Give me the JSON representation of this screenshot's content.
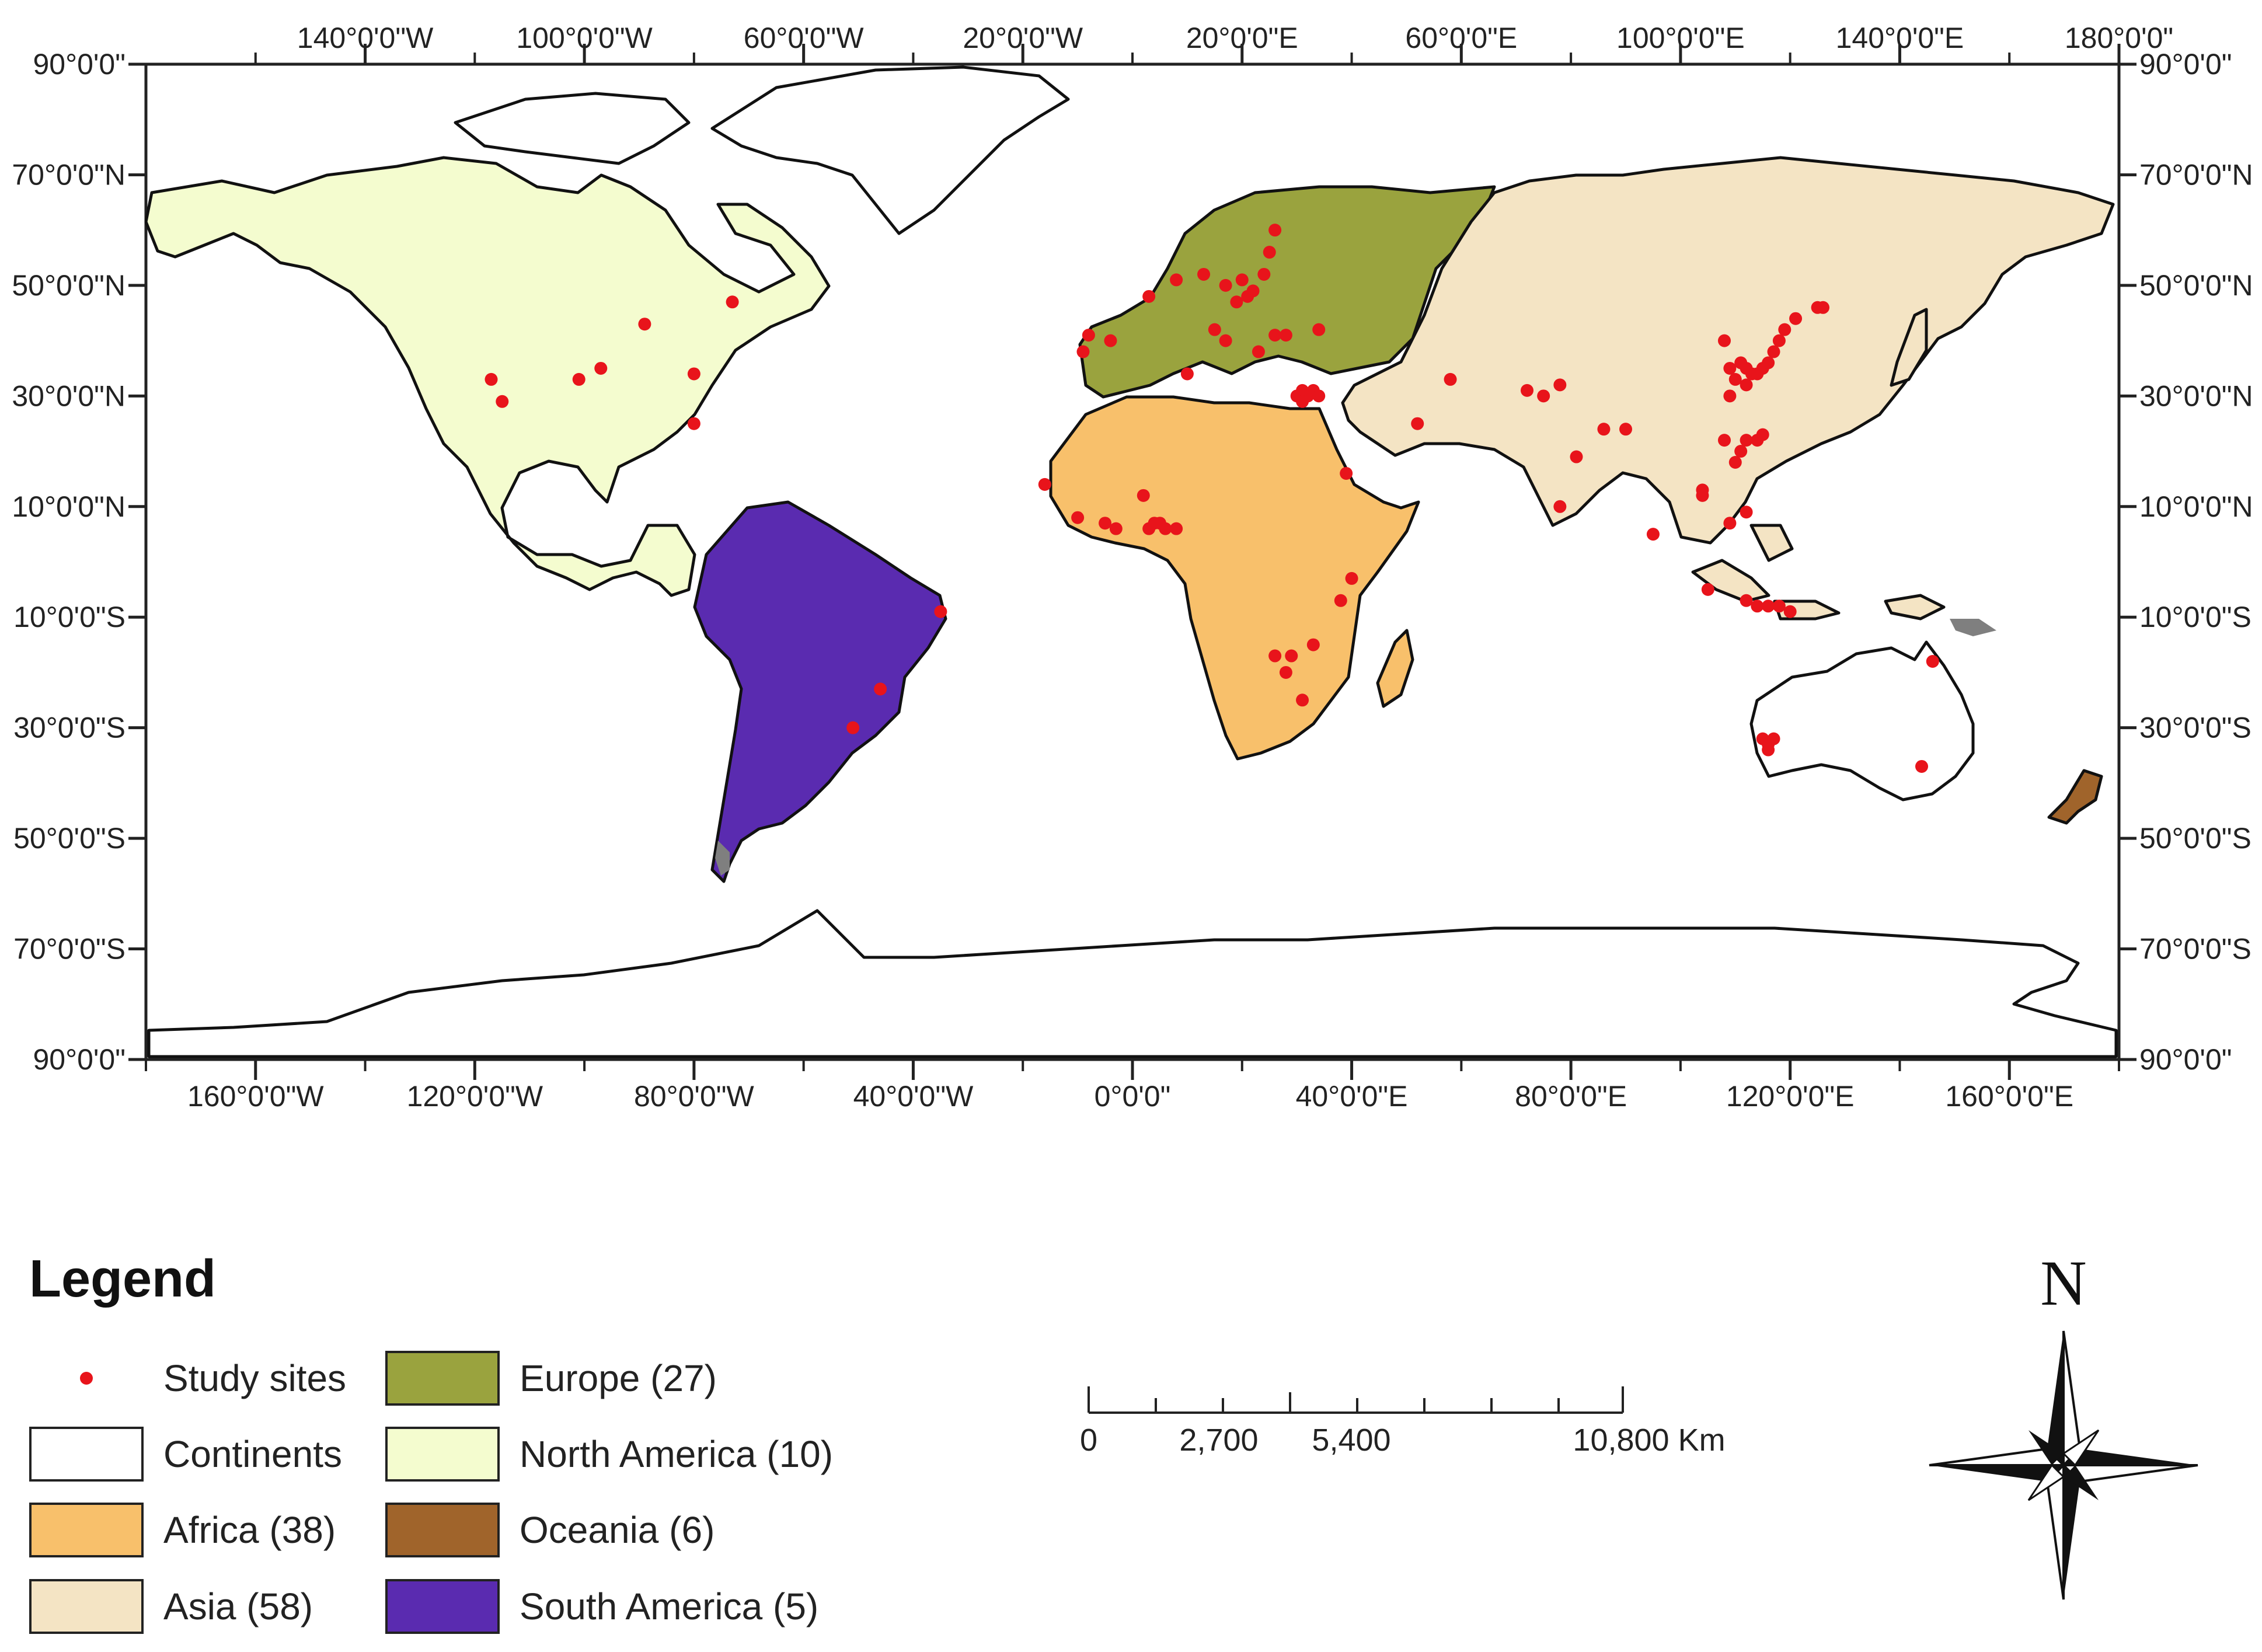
{
  "map": {
    "top_ticks": [
      "140°0'0\"W",
      "100°0'0\"W",
      "60°0'0\"W",
      "20°0'0\"W",
      "20°0'0\"E",
      "60°0'0\"E",
      "100°0'0\"E",
      "140°0'0\"E",
      "180°0'0\""
    ],
    "bottom_ticks": [
      "160°0'0\"W",
      "120°0'0\"W",
      "80°0'0\"W",
      "40°0'0\"W",
      "0°0'0\"",
      "40°0'0\"E",
      "80°0'0\"E",
      "120°0'0\"E",
      "160°0'0\"E"
    ],
    "lat_ticks": [
      "90°0'0\"",
      "70°0'0\"N",
      "50°0'0\"N",
      "30°0'0\"N",
      "10°0'0\"N",
      "10°0'0\"S",
      "30°0'0\"S",
      "50°0'0\"S",
      "70°0'0\"S",
      "90°0'0\""
    ],
    "colors": {
      "north_america": "#f4fccf",
      "south_america": "#5a2bb0",
      "europe": "#9aa33e",
      "africa": "#f8c06b",
      "asia": "#f4e4c4",
      "oceania": "#a0642b",
      "continents": "#ffffff",
      "gray": "#7f7f7f",
      "site": "#e8141b"
    },
    "sites": [
      [
        -117,
        33
      ],
      [
        -115,
        29
      ],
      [
        -101,
        33
      ],
      [
        -97,
        35
      ],
      [
        -89,
        43
      ],
      [
        -80,
        34
      ],
      [
        -80,
        25
      ],
      [
        -73,
        47
      ],
      [
        -35,
        -9
      ],
      [
        -46,
        -23
      ],
      [
        -51,
        -30
      ],
      [
        -9,
        38
      ],
      [
        -8,
        41
      ],
      [
        -4,
        40
      ],
      [
        3,
        48
      ],
      [
        8,
        51
      ],
      [
        13,
        52
      ],
      [
        17,
        50
      ],
      [
        19,
        47
      ],
      [
        20,
        51
      ],
      [
        21,
        48
      ],
      [
        22,
        49
      ],
      [
        24,
        52
      ],
      [
        25,
        56
      ],
      [
        26,
        60
      ],
      [
        15,
        42
      ],
      [
        17,
        40
      ],
      [
        23,
        38
      ],
      [
        26,
        41
      ],
      [
        28,
        41
      ],
      [
        34,
        42
      ],
      [
        -16,
        14
      ],
      [
        -10,
        8
      ],
      [
        -5,
        7
      ],
      [
        -3,
        6
      ],
      [
        3,
        6
      ],
      [
        4,
        7
      ],
      [
        5,
        7
      ],
      [
        6,
        6
      ],
      [
        8,
        6
      ],
      [
        2,
        12
      ],
      [
        10,
        34
      ],
      [
        30,
        30
      ],
      [
        31,
        31
      ],
      [
        32,
        30
      ],
      [
        33,
        31
      ],
      [
        34,
        30
      ],
      [
        31,
        29
      ],
      [
        39,
        16
      ],
      [
        38,
        -7
      ],
      [
        40,
        -3
      ],
      [
        26,
        -17
      ],
      [
        29,
        -17
      ],
      [
        33,
        -15
      ],
      [
        28,
        -20
      ],
      [
        31,
        -25
      ],
      [
        58,
        33
      ],
      [
        52,
        25
      ],
      [
        72,
        31
      ],
      [
        75,
        30
      ],
      [
        78,
        32
      ],
      [
        81,
        19
      ],
      [
        86,
        24
      ],
      [
        90,
        24
      ],
      [
        78,
        10
      ],
      [
        95,
        5
      ],
      [
        105,
        -5
      ],
      [
        104,
        12
      ],
      [
        104,
        13
      ],
      [
        108,
        22
      ],
      [
        109,
        30
      ],
      [
        110,
        33
      ],
      [
        111,
        36
      ],
      [
        112,
        35
      ],
      [
        113,
        34
      ],
      [
        114,
        34
      ],
      [
        115,
        35
      ],
      [
        116,
        36
      ],
      [
        117,
        38
      ],
      [
        118,
        40
      ],
      [
        119,
        42
      ],
      [
        121,
        44
      ],
      [
        125,
        46
      ],
      [
        126,
        46
      ],
      [
        110,
        18
      ],
      [
        111,
        20
      ],
      [
        112,
        22
      ],
      [
        114,
        22
      ],
      [
        115,
        23
      ],
      [
        112,
        -7
      ],
      [
        114,
        -8
      ],
      [
        116,
        -8
      ],
      [
        118,
        -8
      ],
      [
        120,
        -9
      ],
      [
        109,
        7
      ],
      [
        112,
        9
      ],
      [
        109,
        35
      ],
      [
        112,
        32
      ],
      [
        108,
        40
      ],
      [
        115,
        -32
      ],
      [
        116,
        -33
      ],
      [
        117,
        -32
      ],
      [
        116,
        -34
      ],
      [
        146,
        -18
      ],
      [
        144,
        -37
      ]
    ]
  },
  "legend": {
    "title": "Legend",
    "items": [
      {
        "label": "Study sites",
        "kind": "dot",
        "color": "#e8141b"
      },
      {
        "label": "Continents",
        "kind": "swatch",
        "color": "#ffffff"
      },
      {
        "label": "Africa (38)",
        "kind": "swatch",
        "color": "#f8c06b"
      },
      {
        "label": "Asia (58)",
        "kind": "swatch",
        "color": "#f4e4c4"
      },
      {
        "label": "Europe (27)",
        "kind": "swatch",
        "color": "#9aa33e"
      },
      {
        "label": "North America (10)",
        "kind": "swatch",
        "color": "#f4fccf"
      },
      {
        "label": "Oceania (6)",
        "kind": "swatch",
        "color": "#a0642b"
      },
      {
        "label": "South America (5)",
        "kind": "swatch",
        "color": "#5a2bb0"
      }
    ]
  },
  "scale_bar": {
    "labels": [
      "0",
      "2,700",
      "5,400",
      "10,800 Km"
    ]
  },
  "north_arrow": {
    "letter": "N"
  }
}
